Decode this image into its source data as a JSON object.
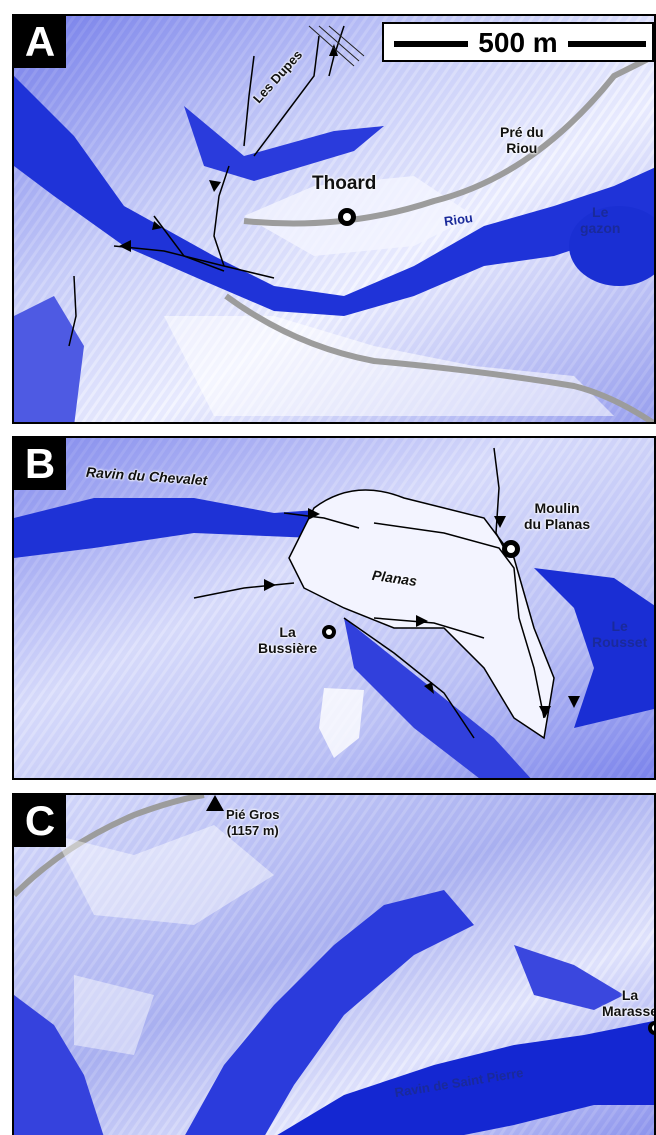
{
  "colors": {
    "relief_light": "#e6e9ff",
    "relief_mid": "#8a93e8",
    "relief_dark": "#1e2fd6",
    "channel": "#0a1fd8",
    "road": "#9c9c9c",
    "stream": "#000000"
  },
  "panel_a": {
    "letter": "A",
    "scale": "500 m",
    "les_dupes": "Les Dupes",
    "pre_du_riou": "Pré du\nRiou",
    "thoard": "Thoard",
    "riou": "Riou",
    "le_gazon": "Le\ngazon"
  },
  "panel_b": {
    "letter": "B",
    "ravin_du_chevalet": "Ravin du Chevalet",
    "moulin_du_planas": "Moulin\ndu Planas",
    "planas": "Planas",
    "la_bussiere": "La\nBussière",
    "le_rousset": "Le\nRousset"
  },
  "panel_c": {
    "letter": "C",
    "pie_gros": "Pié Gros\n(1157 m)",
    "la_marasse": "La\nMarasse",
    "ravin_de_saint_pierre": "Ravin de Saint Pierre"
  }
}
